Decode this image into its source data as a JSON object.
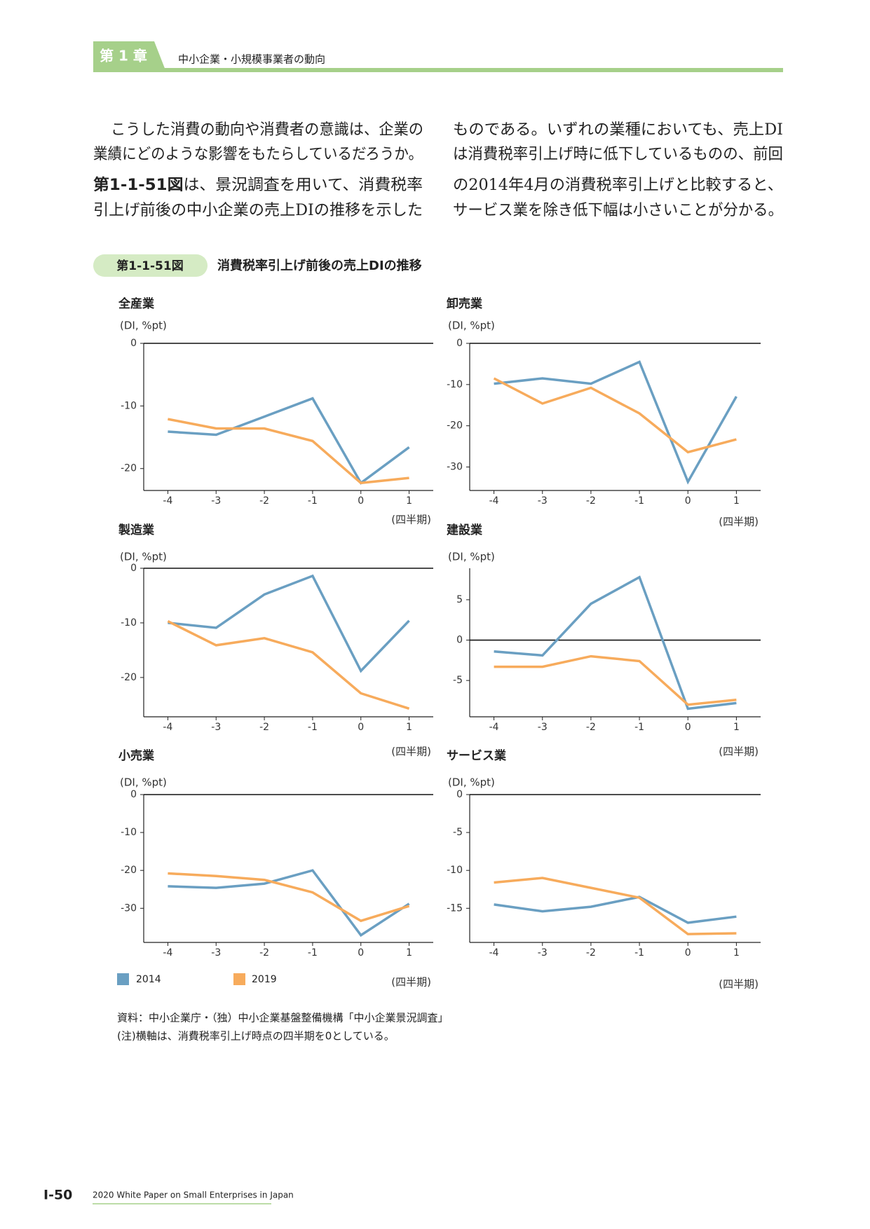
{
  "header": {
    "chapter": "第 1 章",
    "title": "中小企業・小規模事業者の動向"
  },
  "body": {
    "lines": [
      [
        "こうした消費の動向や消費者の意識は、企業の"
      ],
      [
        "業績にどのような影響をもたらしているだろうか。"
      ],
      [
        "第1-1-51図",
        "は、景況調査を用いて、消費税率"
      ],
      [
        "引上げ前後の中小企業の売上DIの推移を示した"
      ],
      [
        "ものである。いずれの業種においても、売上DI"
      ],
      [
        "は消費税率引上げ時に低下しているものの、前回"
      ],
      [
        "の2014年4月の消費税率引上げと比較すると、"
      ],
      [
        "サービス業を除き低下幅は小さいことが分かる。"
      ]
    ]
  },
  "figure": {
    "number": "第1-1-51図",
    "title": "消費税率引上げ前後の売上DIの推移"
  },
  "chart_data": [
    {
      "type": "line",
      "title": "全産業",
      "ylabel": "(DI, %pt)",
      "xlabel": "(四半期)",
      "x": [
        -4,
        -3,
        -2,
        -1,
        0,
        1
      ],
      "xlim": [
        -4.5,
        1.5
      ],
      "xticks": [
        -4,
        -3,
        -2,
        -1,
        0,
        1
      ],
      "ylim": [
        -23.5,
        0
      ],
      "yticks": [
        0,
        -10,
        -20
      ],
      "series": [
        {
          "name": "2014",
          "color": "#6a9fc2",
          "values": [
            -14.1,
            -14.6,
            -11.7,
            -8.8,
            -22.3,
            -16.6
          ]
        },
        {
          "name": "2019",
          "color": "#f7ab5c",
          "values": [
            -12.1,
            -13.6,
            -13.6,
            -15.6,
            -22.3,
            -21.5
          ]
        }
      ]
    },
    {
      "type": "line",
      "title": "卸売業",
      "ylabel": "(DI, %pt)",
      "xlabel": "(四半期)",
      "x": [
        -4,
        -3,
        -2,
        -1,
        0,
        1
      ],
      "xlim": [
        -4.5,
        1.5
      ],
      "xticks": [
        -4,
        -3,
        -2,
        -1,
        0,
        1
      ],
      "ylim": [
        -35.7,
        0
      ],
      "yticks": [
        0,
        -10,
        -20,
        -30
      ],
      "series": [
        {
          "name": "2014",
          "color": "#6a9fc2",
          "values": [
            -9.8,
            -8.5,
            -9.8,
            -4.5,
            -33.6,
            -12.9
          ]
        },
        {
          "name": "2019",
          "color": "#f7ab5c",
          "values": [
            -8.5,
            -14.6,
            -10.8,
            -17,
            -26.4,
            -23.3
          ]
        }
      ]
    },
    {
      "type": "line",
      "title": "製造業",
      "ylabel": "(DI, %pt)",
      "xlabel": "(四半期)",
      "x": [
        -4,
        -3,
        -2,
        -1,
        0,
        1
      ],
      "xlim": [
        -4.5,
        1.5
      ],
      "xticks": [
        -4,
        -3,
        -2,
        -1,
        0,
        1
      ],
      "ylim": [
        -27.2,
        0
      ],
      "yticks": [
        0,
        -10,
        -20
      ],
      "series": [
        {
          "name": "2014",
          "color": "#6a9fc2",
          "values": [
            -10,
            -10.9,
            -4.8,
            -1.4,
            -18.8,
            -9.6
          ]
        },
        {
          "name": "2019",
          "color": "#f7ab5c",
          "values": [
            -9.7,
            -14.1,
            -12.8,
            -15.4,
            -22.9,
            -25.7
          ]
        }
      ]
    },
    {
      "type": "line",
      "title": "建設業",
      "ylabel": "(DI, %pt)",
      "xlabel": "(四半期)",
      "x": [
        -4,
        -3,
        -2,
        -1,
        0,
        1
      ],
      "xlim": [
        -4.5,
        1.5
      ],
      "xticks": [
        -4,
        -3,
        -2,
        -1,
        0,
        1
      ],
      "ylim": [
        -9.5,
        8.9
      ],
      "yticks": [
        5,
        0,
        -5
      ],
      "series": [
        {
          "name": "2014",
          "color": "#6a9fc2",
          "values": [
            -1.4,
            -1.9,
            4.5,
            7.8,
            -8.5,
            -7.8
          ]
        },
        {
          "name": "2019",
          "color": "#f7ab5c",
          "values": [
            -3.3,
            -3.3,
            -2,
            -2.6,
            -8,
            -7.4
          ]
        }
      ]
    },
    {
      "type": "line",
      "title": "小売業",
      "ylabel": "(DI, %pt)",
      "xlabel": "(四半期)",
      "x": [
        -4,
        -3,
        -2,
        -1,
        0,
        1
      ],
      "xlim": [
        -4.5,
        1.5
      ],
      "xticks": [
        -4,
        -3,
        -2,
        -1,
        0,
        1
      ],
      "ylim": [
        -39,
        0
      ],
      "yticks": [
        0,
        -10,
        -20,
        -30
      ],
      "series": [
        {
          "name": "2014",
          "color": "#6a9fc2",
          "values": [
            -24.2,
            -24.6,
            -23.5,
            -20,
            -37.1,
            -28.8
          ]
        },
        {
          "name": "2019",
          "color": "#f7ab5c",
          "values": [
            -20.8,
            -21.5,
            -22.5,
            -25.8,
            -33.3,
            -29.4
          ]
        }
      ]
    },
    {
      "type": "line",
      "title": "サービス業",
      "ylabel": "(DI, %pt)",
      "xlabel": "(四半期)",
      "x": [
        -4,
        -3,
        -2,
        -1,
        0,
        1
      ],
      "xlim": [
        -4.5,
        1.5
      ],
      "xticks": [
        -4,
        -3,
        -2,
        -1,
        0,
        1
      ],
      "ylim": [
        -19.5,
        0
      ],
      "yticks": [
        0,
        -5,
        -10,
        -15
      ],
      "series": [
        {
          "name": "2014",
          "color": "#6a9fc2",
          "values": [
            -14.5,
            -15.4,
            -14.8,
            -13.5,
            -16.9,
            -16.1
          ]
        },
        {
          "name": "2019",
          "color": "#f7ab5c",
          "values": [
            -11.6,
            -11,
            -12.3,
            -13.6,
            -18.4,
            -18.3
          ]
        }
      ]
    }
  ],
  "notes": [
    "資料：中小企業庁・（独）中小企業基盤整備機構「中小企業景況調査」",
    "(注)横軸は、消費税率引上げ時点の四半期を0としている。"
  ],
  "footer": {
    "page": "Ⅰ-50",
    "book": "2020 White Paper on Small Enterprises in Japan"
  }
}
